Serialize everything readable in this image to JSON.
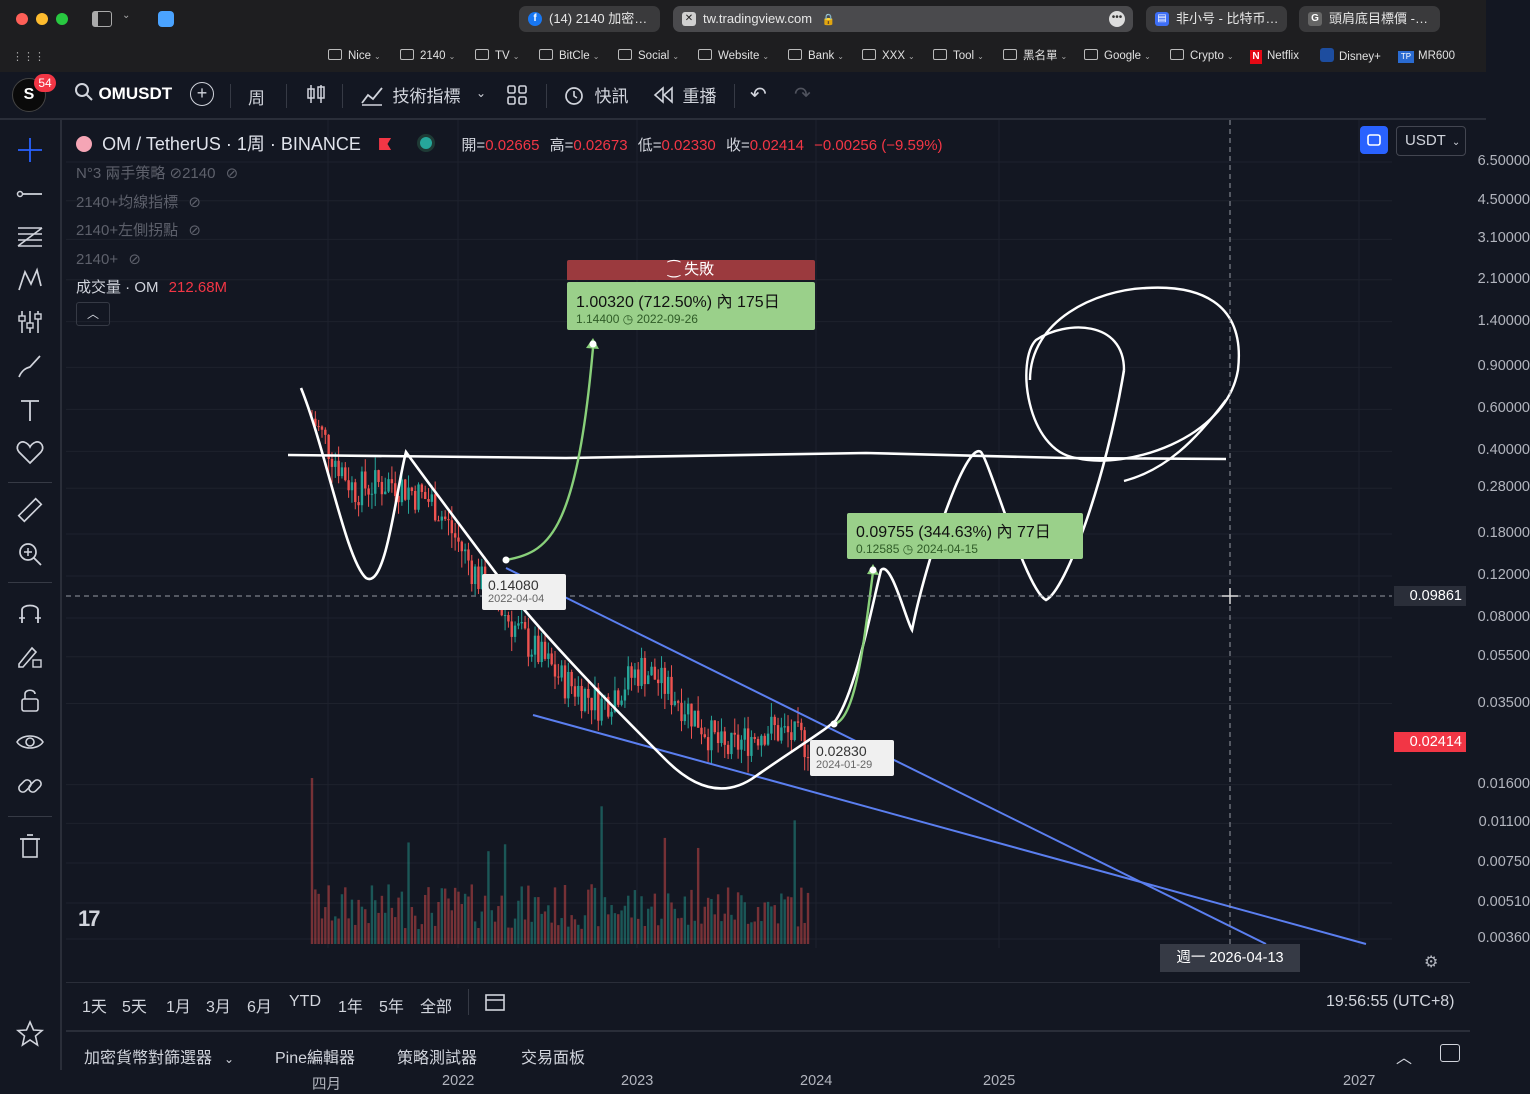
{
  "browser": {
    "tabs": [
      {
        "label": "(14) 2140 加密…",
        "icon": "facebook-icon",
        "color": "#1877f2"
      },
      {
        "label": "tw.tradingview.com",
        "icon": "tradingview-favicon"
      },
      {
        "label": "非小号 - 比特币…",
        "icon": "feixiaohao-favicon",
        "color": "#3d6ef6"
      },
      {
        "label": "頭肩底目標價 -…",
        "icon": "g-favicon"
      }
    ],
    "bookmarks": [
      "Nice",
      "2140",
      "TV",
      "BitCle",
      "Social",
      "Website",
      "Bank",
      "XXX",
      "Tool",
      "黑名單",
      "Google",
      "Crypto"
    ],
    "bookmark_links": [
      "Netflix",
      "Disney+",
      "MR600"
    ],
    "notification_count": "54"
  },
  "toolbar": {
    "symbol": "OMUSDT",
    "interval": "周",
    "indicators": "技術指標",
    "alerts": "快訊",
    "replay": "重播"
  },
  "legend": {
    "title": "OM / TetherUS · 1周 · BINANCE",
    "open_label": "開=",
    "open": "0.02665",
    "high_label": "高=",
    "high": "0.02673",
    "low_label": "低=",
    "low": "0.02330",
    "close_label": "收=",
    "close": "0.02414",
    "change": "−0.00256 (−9.59%)",
    "indicators": [
      "N°3 兩手策略 ⊘2140",
      "2140+均線指標",
      "2140+左側拐點",
      "2140+"
    ],
    "volume_label": "成交量 · OM",
    "volume_value": "212.68M",
    "currency": "USDT"
  },
  "annotations": {
    "fail_label": "失敗",
    "box1_main": "1.00320 (712.50%) 內 175日",
    "box1_sub1": "1.14400",
    "box1_sub2": "2022-09-26",
    "box2_main": "0.09755 (344.63%) 內 77日",
    "box2_sub1": "0.12585",
    "box2_sub2": "2024-04-15",
    "label1_price": "0.14080",
    "label1_date": "2022-04-04",
    "label2_price": "0.02830",
    "label2_date": "2024-01-29",
    "crosshair_price": "0.09861",
    "crosshair_date": "週一 2026-04-13",
    "last_price": "0.02414"
  },
  "chart_data": {
    "type": "line",
    "title": "OM / TetherUS · 1周 · BINANCE",
    "y_scale": "log",
    "y_ticks": [
      "6.50000",
      "4.50000",
      "3.10000",
      "2.10000",
      "1.40000",
      "0.90000",
      "0.60000",
      "0.40000",
      "0.28000",
      "0.18000",
      "0.12000",
      "0.08000",
      "0.05500",
      "0.03500",
      "0.01600",
      "0.01100",
      "0.00750",
      "0.00510",
      "0.00360"
    ],
    "x_ticks": [
      "四月",
      "2022",
      "2023",
      "2024",
      "2025",
      "2027"
    ],
    "series": [
      {
        "name": "OM",
        "x": [
          "2021-03",
          "2021-06",
          "2021-09",
          "2021-12",
          "2022-03",
          "2022-06",
          "2022-09",
          "2022-12",
          "2023-03",
          "2023-06",
          "2023-09",
          "2023-12",
          "2024-01"
        ],
        "values": [
          0.55,
          0.28,
          0.3,
          0.24,
          0.12,
          0.07,
          0.045,
          0.035,
          0.05,
          0.035,
          0.022,
          0.028,
          0.024
        ]
      }
    ]
  },
  "range_buttons": [
    "1天",
    "5天",
    "1月",
    "3月",
    "6月",
    "YTD",
    "1年",
    "5年",
    "全部"
  ],
  "time_display": "19:56:55 (UTC+8)",
  "bottom_tabs": [
    "加密貨幣對篩選器",
    "Pine編輯器",
    "策略測試器",
    "交易面板"
  ]
}
